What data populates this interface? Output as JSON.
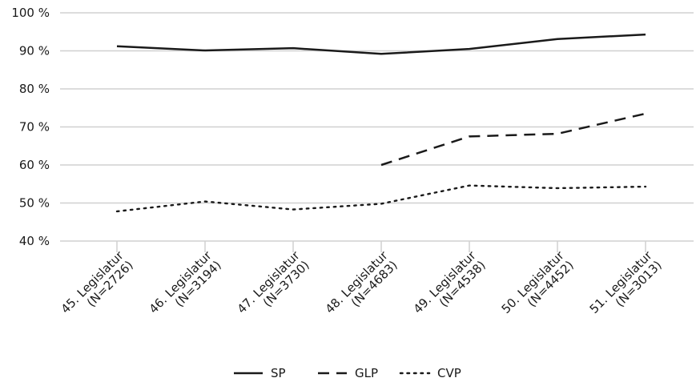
{
  "chart_data": {
    "type": "line",
    "categories": [
      [
        "45. Legislatur",
        "(N=2726)"
      ],
      [
        "46. Legislatur",
        "(N=3194)"
      ],
      [
        "47. Legislatur",
        "(N=3730)"
      ],
      [
        "48. Legislatur",
        "(N=4683)"
      ],
      [
        "49. Legislatur",
        "(N=4538)"
      ],
      [
        "50. Legislatur",
        "(N=4452)"
      ],
      [
        "51. Legislatur",
        "(N=3013)"
      ]
    ],
    "series": [
      {
        "name": "SP",
        "values": [
          91.2,
          90.1,
          90.7,
          89.2,
          90.5,
          93.1,
          94.3
        ],
        "dash": "solid"
      },
      {
        "name": "GLP",
        "values": [
          null,
          null,
          null,
          60.0,
          67.5,
          68.2,
          73.5
        ],
        "dash": "dashed"
      },
      {
        "name": "CVP",
        "values": [
          47.8,
          50.4,
          48.3,
          49.8,
          54.6,
          53.9,
          54.3
        ],
        "dash": "dotted"
      }
    ],
    "ylim": [
      40,
      100
    ],
    "yticks": [
      40,
      50,
      60,
      70,
      80,
      90,
      100
    ],
    "ytick_suffix": " %",
    "grid": "horizontal",
    "legend_position": "bottom-center",
    "line_color": "#1a1a1a",
    "grid_color": "#d0d0d0"
  }
}
